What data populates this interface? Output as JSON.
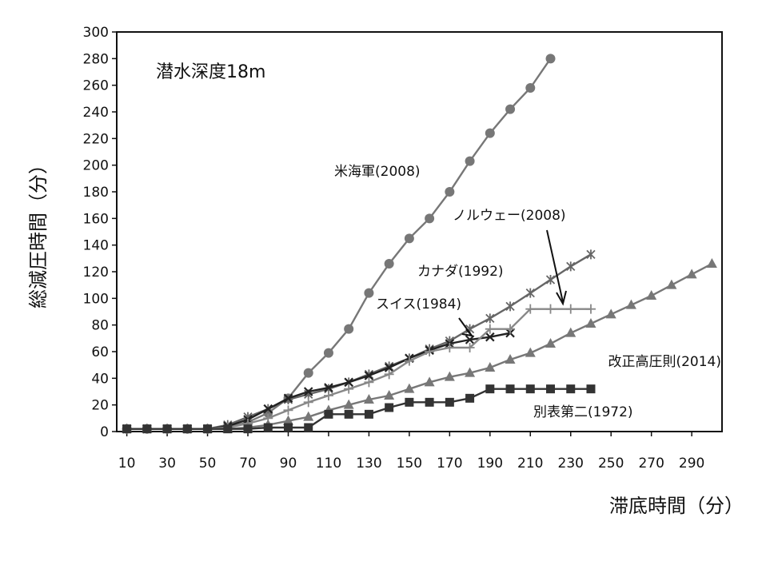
{
  "chart_data": {
    "type": "line",
    "title": "潜水深度18m",
    "xlabel": "滞底時間（分）",
    "ylabel": "総減圧時間（分）",
    "xlim": [
      5,
      305
    ],
    "ylim": [
      0,
      300
    ],
    "xticks": [
      10,
      30,
      50,
      70,
      90,
      110,
      130,
      150,
      170,
      190,
      210,
      230,
      250,
      270,
      290
    ],
    "yticks": [
      0,
      20,
      40,
      60,
      80,
      100,
      120,
      140,
      160,
      180,
      200,
      220,
      240,
      260,
      280,
      300
    ],
    "grid": false,
    "series": [
      {
        "name": "米海軍(2008)",
        "color": "#777777",
        "marker": "circle",
        "x": [
          10,
          20,
          30,
          40,
          50,
          60,
          70,
          80,
          90,
          100,
          110,
          120,
          130,
          140,
          150,
          160,
          170,
          180,
          190,
          200,
          210,
          220
        ],
        "y": [
          2,
          2,
          2,
          2,
          2,
          3,
          7,
          14,
          25,
          44,
          59,
          77,
          104,
          126,
          145,
          160,
          180,
          203,
          224,
          242,
          258,
          280
        ]
      },
      {
        "name": "カナダ(1992)",
        "color": "#666666",
        "marker": "star",
        "x": [
          10,
          20,
          30,
          40,
          50,
          60,
          70,
          80,
          90,
          100,
          110,
          120,
          130,
          140,
          150,
          160,
          170,
          180,
          190,
          200,
          210,
          220,
          230,
          240
        ],
        "y": [
          2,
          2,
          2,
          2,
          2,
          5,
          11,
          17,
          24,
          28,
          32,
          37,
          43,
          49,
          55,
          62,
          68,
          77,
          85,
          94,
          104,
          114,
          124,
          133
        ]
      },
      {
        "name": "スイス(1984)",
        "color": "#222222",
        "marker": "x",
        "x": [
          10,
          20,
          30,
          40,
          50,
          60,
          70,
          80,
          90,
          100,
          110,
          120,
          130,
          140,
          150,
          160,
          170,
          180,
          190,
          200
        ],
        "y": [
          2,
          2,
          2,
          2,
          2,
          4,
          9,
          17,
          25,
          30,
          33,
          37,
          42,
          48,
          55,
          61,
          66,
          69,
          71,
          74
        ]
      },
      {
        "name": "ノルウェー(2008)",
        "color": "#888888",
        "marker": "plus",
        "x": [
          10,
          20,
          30,
          40,
          50,
          60,
          70,
          80,
          90,
          100,
          110,
          120,
          130,
          140,
          150,
          160,
          170,
          180,
          190,
          200,
          210,
          220,
          230,
          240
        ],
        "y": [
          2,
          2,
          2,
          2,
          2,
          3,
          6,
          10,
          16,
          22,
          27,
          32,
          37,
          43,
          53,
          60,
          63,
          63,
          77,
          77,
          92,
          92,
          92,
          92
        ]
      },
      {
        "name": "改正高圧則(2014)",
        "color": "#777777",
        "marker": "triangle",
        "x": [
          10,
          20,
          30,
          40,
          50,
          60,
          70,
          80,
          90,
          100,
          110,
          120,
          130,
          140,
          150,
          160,
          170,
          180,
          190,
          200,
          210,
          220,
          230,
          240,
          250,
          260,
          270,
          280,
          290,
          300
        ],
        "y": [
          2,
          2,
          2,
          2,
          2,
          2,
          3,
          5,
          8,
          11,
          16,
          20,
          24,
          27,
          32,
          37,
          41,
          44,
          48,
          54,
          59,
          66,
          74,
          81,
          88,
          95,
          102,
          110,
          118,
          126
        ]
      },
      {
        "name": "別表第二(1972)",
        "color": "#333333",
        "marker": "square",
        "x": [
          10,
          20,
          30,
          40,
          50,
          60,
          70,
          80,
          90,
          100,
          110,
          120,
          130,
          140,
          150,
          160,
          170,
          180,
          190,
          200,
          210,
          220,
          230,
          240
        ],
        "y": [
          2,
          2,
          2,
          2,
          2,
          2,
          2,
          3,
          3,
          3,
          13,
          13,
          13,
          18,
          22,
          22,
          22,
          25,
          32,
          32,
          32,
          32,
          32,
          32
        ]
      }
    ]
  }
}
